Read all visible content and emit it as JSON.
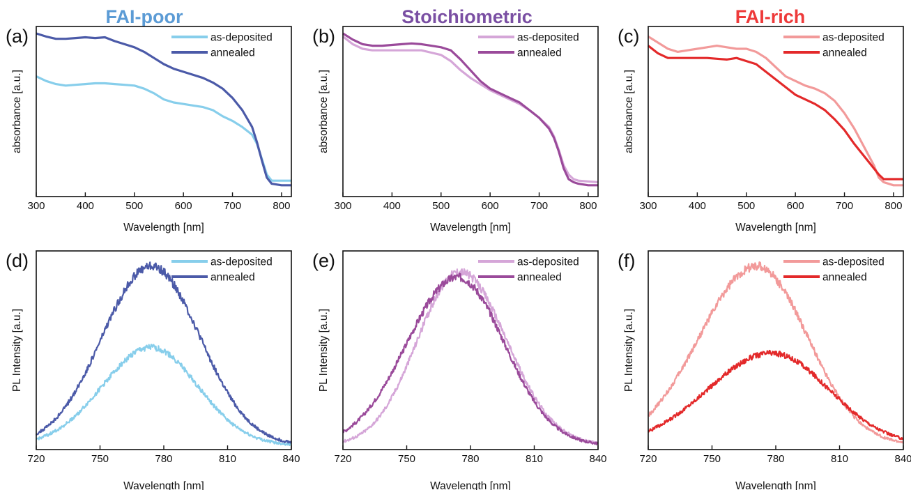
{
  "columns": [
    {
      "title": "FAI-poor",
      "color": "#5b9bd5"
    },
    {
      "title": "Stoichiometric",
      "color": "#7a4fa3"
    },
    {
      "title": "FAI-rich",
      "color": "#ee3a3a"
    }
  ],
  "chart_data": [
    {
      "panel": "(a)",
      "type": "line",
      "xlabel": "Wavelength [nm]",
      "ylabel": "absorbance [a.u.]",
      "xlim": [
        300,
        820
      ],
      "ylim": [
        0,
        1
      ],
      "xticks": [
        300,
        400,
        500,
        600,
        700,
        800
      ],
      "legend_position": "top-right",
      "series": [
        {
          "name": "as-deposited",
          "color": "#87ceeb",
          "x": [
            300,
            320,
            340,
            360,
            380,
            400,
            420,
            440,
            460,
            480,
            500,
            520,
            540,
            560,
            580,
            600,
            620,
            640,
            660,
            680,
            700,
            720,
            740,
            750,
            760,
            770,
            780,
            800,
            820
          ],
          "y": [
            0.72,
            0.69,
            0.67,
            0.66,
            0.665,
            0.67,
            0.675,
            0.675,
            0.67,
            0.665,
            0.66,
            0.64,
            0.61,
            0.57,
            0.55,
            0.54,
            0.53,
            0.52,
            0.5,
            0.46,
            0.43,
            0.39,
            0.34,
            0.28,
            0.18,
            0.08,
            0.04,
            0.04,
            0.04
          ]
        },
        {
          "name": "annealed",
          "color": "#4b5aa8",
          "x": [
            300,
            320,
            340,
            360,
            380,
            400,
            420,
            440,
            460,
            480,
            500,
            520,
            540,
            560,
            580,
            600,
            620,
            640,
            660,
            680,
            700,
            720,
            740,
            750,
            760,
            770,
            780,
            800,
            820
          ],
          "y": [
            1.0,
            0.98,
            0.965,
            0.965,
            0.97,
            0.975,
            0.97,
            0.975,
            0.95,
            0.93,
            0.91,
            0.88,
            0.84,
            0.8,
            0.77,
            0.75,
            0.73,
            0.71,
            0.68,
            0.64,
            0.58,
            0.5,
            0.39,
            0.29,
            0.17,
            0.06,
            0.02,
            0.01,
            0.01
          ]
        }
      ]
    },
    {
      "panel": "(b)",
      "type": "line",
      "xlabel": "Wavelength [nm]",
      "ylabel": "absorbance [a.u.]",
      "xlim": [
        300,
        820
      ],
      "ylim": [
        0,
        1
      ],
      "xticks": [
        300,
        400,
        500,
        600,
        700,
        800
      ],
      "legend_position": "top-right",
      "series": [
        {
          "name": "as-deposited",
          "color": "#d5a6d8",
          "x": [
            300,
            320,
            340,
            360,
            380,
            400,
            420,
            440,
            460,
            480,
            500,
            520,
            540,
            560,
            580,
            600,
            620,
            640,
            660,
            680,
            700,
            720,
            730,
            740,
            750,
            760,
            770,
            780,
            800,
            820
          ],
          "y": [
            0.98,
            0.93,
            0.9,
            0.89,
            0.89,
            0.89,
            0.89,
            0.89,
            0.89,
            0.875,
            0.86,
            0.82,
            0.76,
            0.71,
            0.67,
            0.63,
            0.6,
            0.57,
            0.54,
            0.5,
            0.45,
            0.39,
            0.33,
            0.24,
            0.14,
            0.08,
            0.05,
            0.04,
            0.035,
            0.03
          ]
        },
        {
          "name": "annealed",
          "color": "#9a4a9a",
          "x": [
            300,
            320,
            340,
            360,
            380,
            400,
            420,
            440,
            460,
            480,
            500,
            520,
            540,
            560,
            580,
            600,
            620,
            640,
            660,
            680,
            700,
            720,
            730,
            740,
            750,
            760,
            770,
            780,
            800,
            820
          ],
          "y": [
            1.0,
            0.96,
            0.93,
            0.92,
            0.92,
            0.925,
            0.93,
            0.935,
            0.93,
            0.92,
            0.91,
            0.89,
            0.83,
            0.76,
            0.69,
            0.64,
            0.61,
            0.58,
            0.55,
            0.5,
            0.45,
            0.38,
            0.32,
            0.23,
            0.12,
            0.05,
            0.03,
            0.02,
            0.01,
            0.01
          ]
        }
      ]
    },
    {
      "panel": "(c)",
      "type": "line",
      "xlabel": "Wavelength [nm]",
      "ylabel": "absorbance [a.u.]",
      "xlim": [
        300,
        820
      ],
      "ylim": [
        0,
        1
      ],
      "xticks": [
        300,
        400,
        500,
        600,
        700,
        800
      ],
      "legend_position": "top-right",
      "series": [
        {
          "name": "as-deposited",
          "color": "#f29a9a",
          "x": [
            300,
            320,
            340,
            360,
            380,
            400,
            420,
            440,
            460,
            480,
            500,
            520,
            540,
            560,
            580,
            600,
            620,
            640,
            660,
            680,
            700,
            720,
            740,
            760,
            770,
            780,
            800,
            820
          ],
          "y": [
            0.98,
            0.94,
            0.9,
            0.88,
            0.89,
            0.9,
            0.91,
            0.92,
            0.91,
            0.9,
            0.9,
            0.88,
            0.84,
            0.78,
            0.72,
            0.69,
            0.66,
            0.64,
            0.61,
            0.56,
            0.48,
            0.38,
            0.26,
            0.14,
            0.06,
            0.03,
            0.01,
            0.01
          ]
        },
        {
          "name": "annealed",
          "color": "#e3292a",
          "x": [
            300,
            320,
            340,
            360,
            380,
            400,
            420,
            440,
            460,
            480,
            500,
            520,
            540,
            560,
            580,
            600,
            620,
            640,
            660,
            680,
            700,
            720,
            740,
            760,
            770,
            780,
            800,
            820
          ],
          "y": [
            0.92,
            0.87,
            0.84,
            0.84,
            0.84,
            0.84,
            0.84,
            0.835,
            0.83,
            0.84,
            0.82,
            0.8,
            0.75,
            0.7,
            0.65,
            0.6,
            0.57,
            0.54,
            0.5,
            0.44,
            0.37,
            0.28,
            0.2,
            0.12,
            0.08,
            0.05,
            0.05,
            0.05
          ]
        }
      ]
    },
    {
      "panel": "(d)",
      "type": "line",
      "xlabel": "Wavelength [nm]",
      "ylabel": "PL Intensity [a.u.]",
      "xlim": [
        720,
        840
      ],
      "ylim": [
        0,
        1
      ],
      "xticks": [
        720,
        750,
        780,
        810,
        840
      ],
      "legend_position": "top-right",
      "series": [
        {
          "name": "as-deposited",
          "color": "#87ceeb",
          "peak_x": 774,
          "peak_y": 0.53,
          "width_left": 23,
          "width_right": 22,
          "baseline": 0.0
        },
        {
          "name": "annealed",
          "color": "#4b5aa8",
          "peak_x": 774,
          "peak_y": 0.97,
          "width_left": 23,
          "width_right": 23,
          "baseline": 0.0
        }
      ]
    },
    {
      "panel": "(e)",
      "type": "line",
      "xlabel": "Wavelength [nm]",
      "ylabel": "PL Intensity [a.u.]",
      "xlim": [
        720,
        840
      ],
      "ylim": [
        0,
        1
      ],
      "xticks": [
        720,
        750,
        780,
        810,
        840
      ],
      "legend_position": "top-right",
      "series": [
        {
          "name": "as-deposited",
          "color": "#d5a6d8",
          "peak_x": 775,
          "peak_y": 0.94,
          "width_left": 20,
          "width_right": 22,
          "baseline": 0.0
        },
        {
          "name": "annealed",
          "color": "#9a4a9a",
          "peak_x": 774,
          "peak_y": 0.91,
          "width_left": 24,
          "width_right": 22,
          "baseline": 0.0
        }
      ]
    },
    {
      "panel": "(f)",
      "type": "line",
      "xlabel": "Wavelength [nm]",
      "ylabel": "PL Intensity [a.u.]",
      "xlim": [
        720,
        840
      ],
      "ylim": [
        0,
        1
      ],
      "xticks": [
        720,
        750,
        780,
        810,
        840
      ],
      "legend_position": "top-right",
      "series": [
        {
          "name": "as-deposited",
          "color": "#f29a9a",
          "peak_x": 771,
          "peak_y": 0.97,
          "width_left": 27,
          "width_right": 24,
          "baseline": 0.0
        },
        {
          "name": "annealed",
          "color": "#e3292a",
          "peak_x": 778,
          "peak_y": 0.5,
          "width_left": 30,
          "width_right": 27,
          "baseline": 0.0
        }
      ]
    }
  ]
}
